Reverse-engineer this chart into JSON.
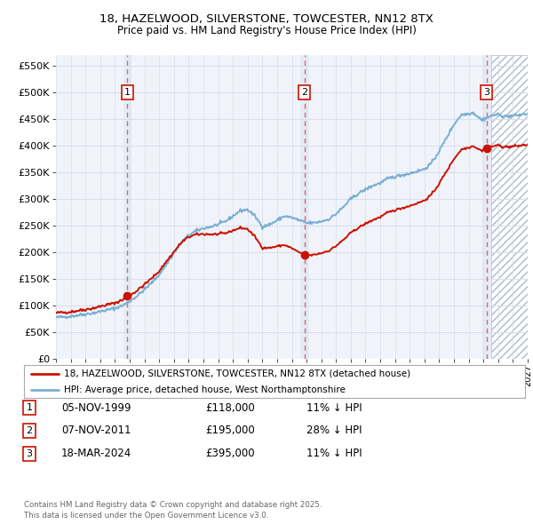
{
  "title_line1": "18, HAZELWOOD, SILVERSTONE, TOWCESTER, NN12 8TX",
  "title_line2": "Price paid vs. HM Land Registry's House Price Index (HPI)",
  "legend_label1": "18, HAZELWOOD, SILVERSTONE, TOWCESTER, NN12 8TX (detached house)",
  "legend_label2": "HPI: Average price, detached house, West Northamptonshire",
  "footer": "Contains HM Land Registry data © Crown copyright and database right 2025.\nThis data is licensed under the Open Government Licence v3.0.",
  "sales": [
    {
      "num": 1,
      "date": "05-NOV-1999",
      "price": 118000,
      "pct": "11% ↓ HPI",
      "year": 1999.85
    },
    {
      "num": 2,
      "date": "07-NOV-2011",
      "price": 195000,
      "pct": "28% ↓ HPI",
      "year": 2011.85
    },
    {
      "num": 3,
      "date": "18-MAR-2024",
      "price": 395000,
      "pct": "11% ↓ HPI",
      "year": 2024.21
    }
  ],
  "xmin": 1995.0,
  "xmax": 2027.0,
  "ymin": 0,
  "ymax": 570000,
  "yticks": [
    0,
    50000,
    100000,
    150000,
    200000,
    250000,
    300000,
    350000,
    400000,
    450000,
    500000,
    550000
  ],
  "chart_bg": "#f0f4fa",
  "hatch_bg": "#e8edf5",
  "hpi_line_color": "#7aafd4",
  "sale_line_color": "#cc1100",
  "grid_color": "#d8dde8",
  "sale_vline_color": "#dd6666",
  "sale_highlight_color": "#dce8f5",
  "dot_color": "#cc1100"
}
